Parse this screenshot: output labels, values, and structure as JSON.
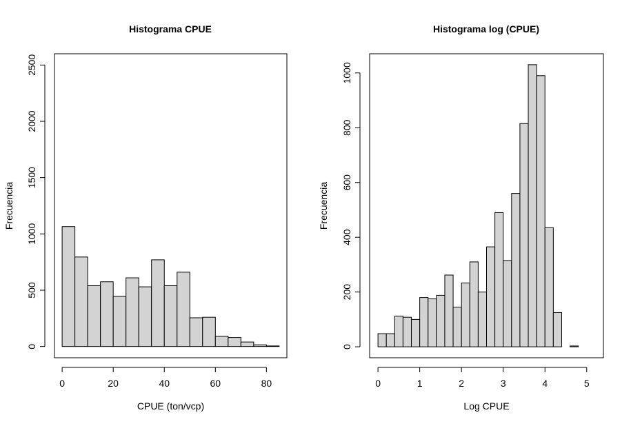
{
  "chart_data": [
    {
      "type": "bar",
      "title": "Histograma CPUE",
      "xlabel": "CPUE (ton/vcp)",
      "ylabel": "Frecuencia",
      "xlim": [
        -3,
        88
      ],
      "ylim": [
        -100,
        2600
      ],
      "xticks": [
        0,
        20,
        40,
        60,
        80
      ],
      "yticks": [
        0,
        500,
        1000,
        1500,
        2000,
        2500
      ],
      "bin_width": 5,
      "bin_starts": [
        0,
        5,
        10,
        15,
        20,
        25,
        30,
        35,
        40,
        45,
        50,
        55,
        60,
        65,
        70,
        75,
        80
      ],
      "values": [
        1065,
        795,
        540,
        575,
        445,
        610,
        530,
        770,
        540,
        660,
        255,
        260,
        90,
        80,
        40,
        15,
        5
      ],
      "bar_fill": "#d3d3d3"
    },
    {
      "type": "bar",
      "title": "Histograma log (CPUE)",
      "xlabel": "Log CPUE",
      "ylabel": "Frecuencia",
      "xlim": [
        -0.2,
        5.4
      ],
      "ylim": [
        -40,
        1070
      ],
      "xticks": [
        0,
        1,
        2,
        3,
        4,
        5
      ],
      "yticks": [
        0,
        200,
        400,
        600,
        800,
        1000
      ],
      "bin_width": 0.2,
      "bin_starts": [
        0,
        0.2,
        0.4,
        0.6,
        0.8,
        1.0,
        1.2,
        1.4,
        1.6,
        1.8,
        2.0,
        2.2,
        2.4,
        2.6,
        2.8,
        3.0,
        3.2,
        3.4,
        3.6,
        3.8,
        4.0,
        4.2,
        4.4,
        4.6,
        4.8,
        5.0
      ],
      "values": [
        48,
        48,
        112,
        108,
        100,
        180,
        175,
        188,
        262,
        145,
        233,
        310,
        200,
        365,
        490,
        315,
        560,
        815,
        1030,
        990,
        435,
        125,
        0,
        3,
        0,
        0
      ],
      "bar_fill": "#d3d3d3"
    }
  ]
}
